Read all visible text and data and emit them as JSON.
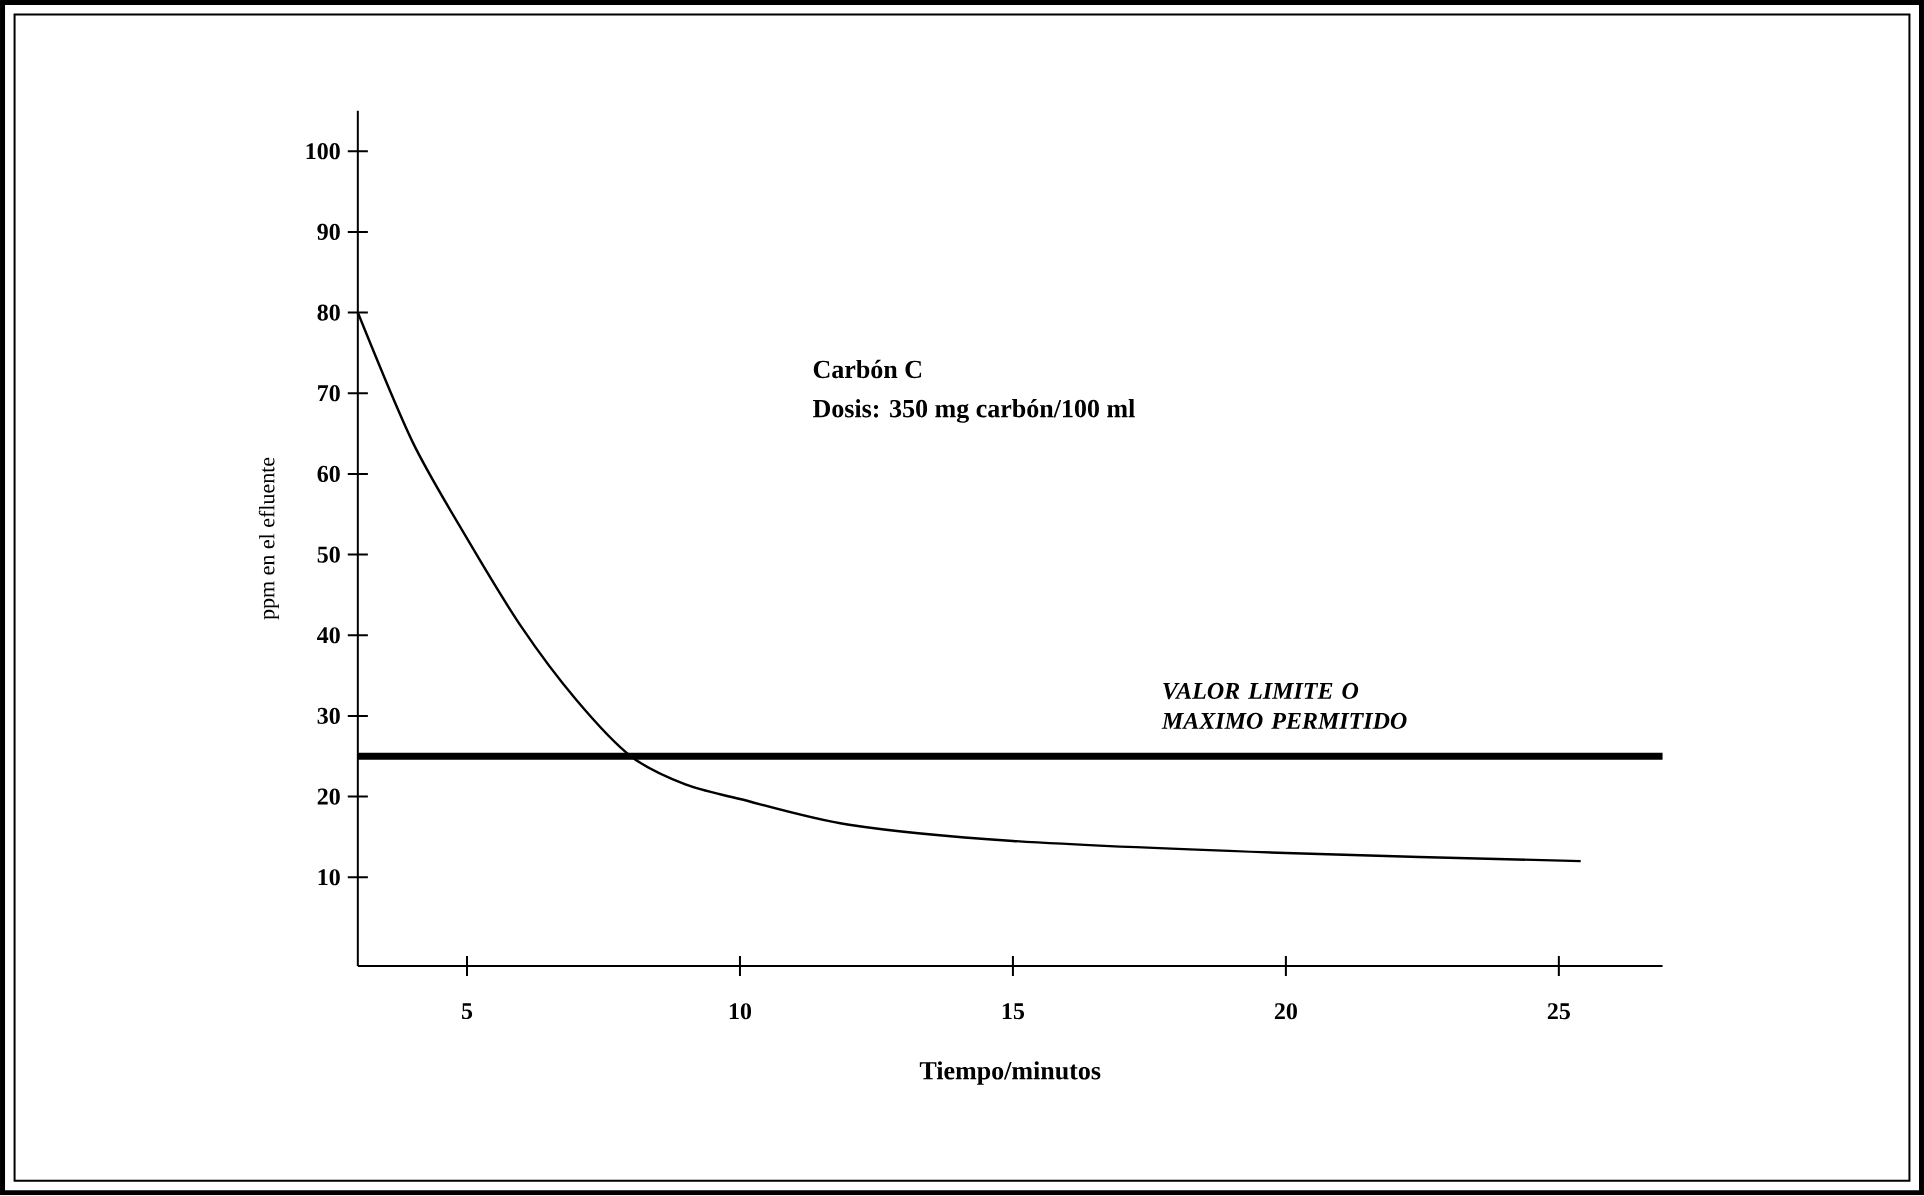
{
  "chart_data": {
    "type": "line",
    "xlabel": "Tiempo/minutos",
    "ylabel": "ppm en el efluente",
    "x": [
      3,
      4,
      5,
      6,
      7,
      8,
      9,
      10,
      12,
      15,
      20,
      25.4
    ],
    "series": [
      {
        "color": "#000000",
        "values": [
          80,
          64,
          52,
          41,
          32,
          25,
          21.5,
          19.7,
          16.5,
          14.5,
          13,
          12
        ]
      }
    ],
    "xlim": [
      3,
      26.9
    ],
    "ylim": [
      -1,
      105
    ],
    "xticks": [
      5,
      10,
      15,
      20,
      25
    ],
    "yticks": [
      10,
      20,
      30,
      40,
      50,
      60,
      70,
      80,
      90,
      100
    ],
    "ref_lines": [
      {
        "axis": "y",
        "value": 25,
        "label": "VALOR LIMITE O MAXIMO PERMITIDO",
        "color": "#000000"
      }
    ],
    "annotations": [
      "Carbón C",
      "Dosis: 350 mg carbón/100 ml"
    ],
    "grid": false,
    "marker": "none",
    "line_style": "solid"
  }
}
